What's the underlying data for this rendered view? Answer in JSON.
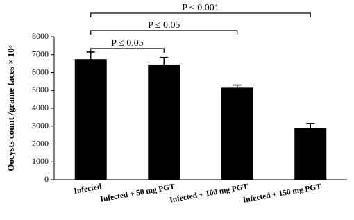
{
  "chart_data": {
    "type": "bar",
    "y_label": "Oocysts count /grame faces × 10³",
    "categories": [
      "Infected",
      "Infected + 50 mg PGT",
      "Infected + 100 mg PGT",
      "Infected + 150 mg PGT"
    ],
    "values": [
      6750,
      6450,
      5150,
      2900
    ],
    "errors": [
      400,
      400,
      150,
      250
    ],
    "color": "#000000",
    "ylim": [
      0,
      8000
    ],
    "yticks": [
      0,
      1000,
      2000,
      3000,
      4000,
      5000,
      6000,
      7000,
      8000
    ],
    "grid": false,
    "annotations": [
      "P ≤ 0.05",
      "P ≤ 0.05",
      "P ≤ 0.001"
    ]
  }
}
